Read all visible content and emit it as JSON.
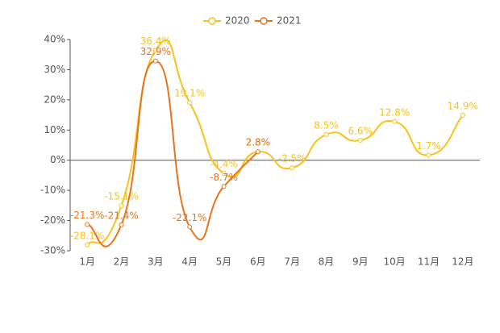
{
  "chart_data": {
    "type": "line",
    "categories": [
      "1月",
      "2月",
      "3月",
      "4月",
      "5月",
      "6月",
      "7月",
      "8月",
      "9月",
      "10月",
      "11月",
      "12月"
    ],
    "series": [
      {
        "name": "2020",
        "color": "#f8c21d",
        "values": [
          -28.1,
          -15.1,
          36.4,
          19.1,
          -4.4,
          2.8,
          -2.5,
          8.5,
          6.6,
          12.8,
          1.7,
          14.9
        ],
        "value_labels": [
          "-28.1%",
          "-15.1%",
          "36.4%",
          "19.1%",
          "-4.4%",
          "2.8%",
          "-2.5%",
          "8.5%",
          "6.6%",
          "12.8%",
          "1.7%",
          "14.9%"
        ]
      },
      {
        "name": "2021",
        "color": "#e8741c",
        "values": [
          -21.3,
          -21.4,
          32.9,
          -22.1,
          -8.7,
          2.8,
          null,
          null,
          null,
          null,
          null,
          null
        ],
        "value_labels": [
          "-21.3%",
          "-21.4%",
          "32.9%",
          "-22.1%",
          "-8.7%",
          "2.8%",
          null,
          null,
          null,
          null,
          null,
          null
        ]
      }
    ],
    "ylim": [
      -30,
      40
    ],
    "yticks": [
      {
        "value": -30,
        "label": "-30%"
      },
      {
        "value": -20,
        "label": "-20%"
      },
      {
        "value": -10,
        "label": "-10%"
      },
      {
        "value": 0,
        "label": "0%"
      },
      {
        "value": 10,
        "label": "10%"
      },
      {
        "value": 20,
        "label": "20%"
      },
      {
        "value": 30,
        "label": "30%"
      },
      {
        "value": 40,
        "label": "40%"
      }
    ],
    "legend": "top"
  }
}
